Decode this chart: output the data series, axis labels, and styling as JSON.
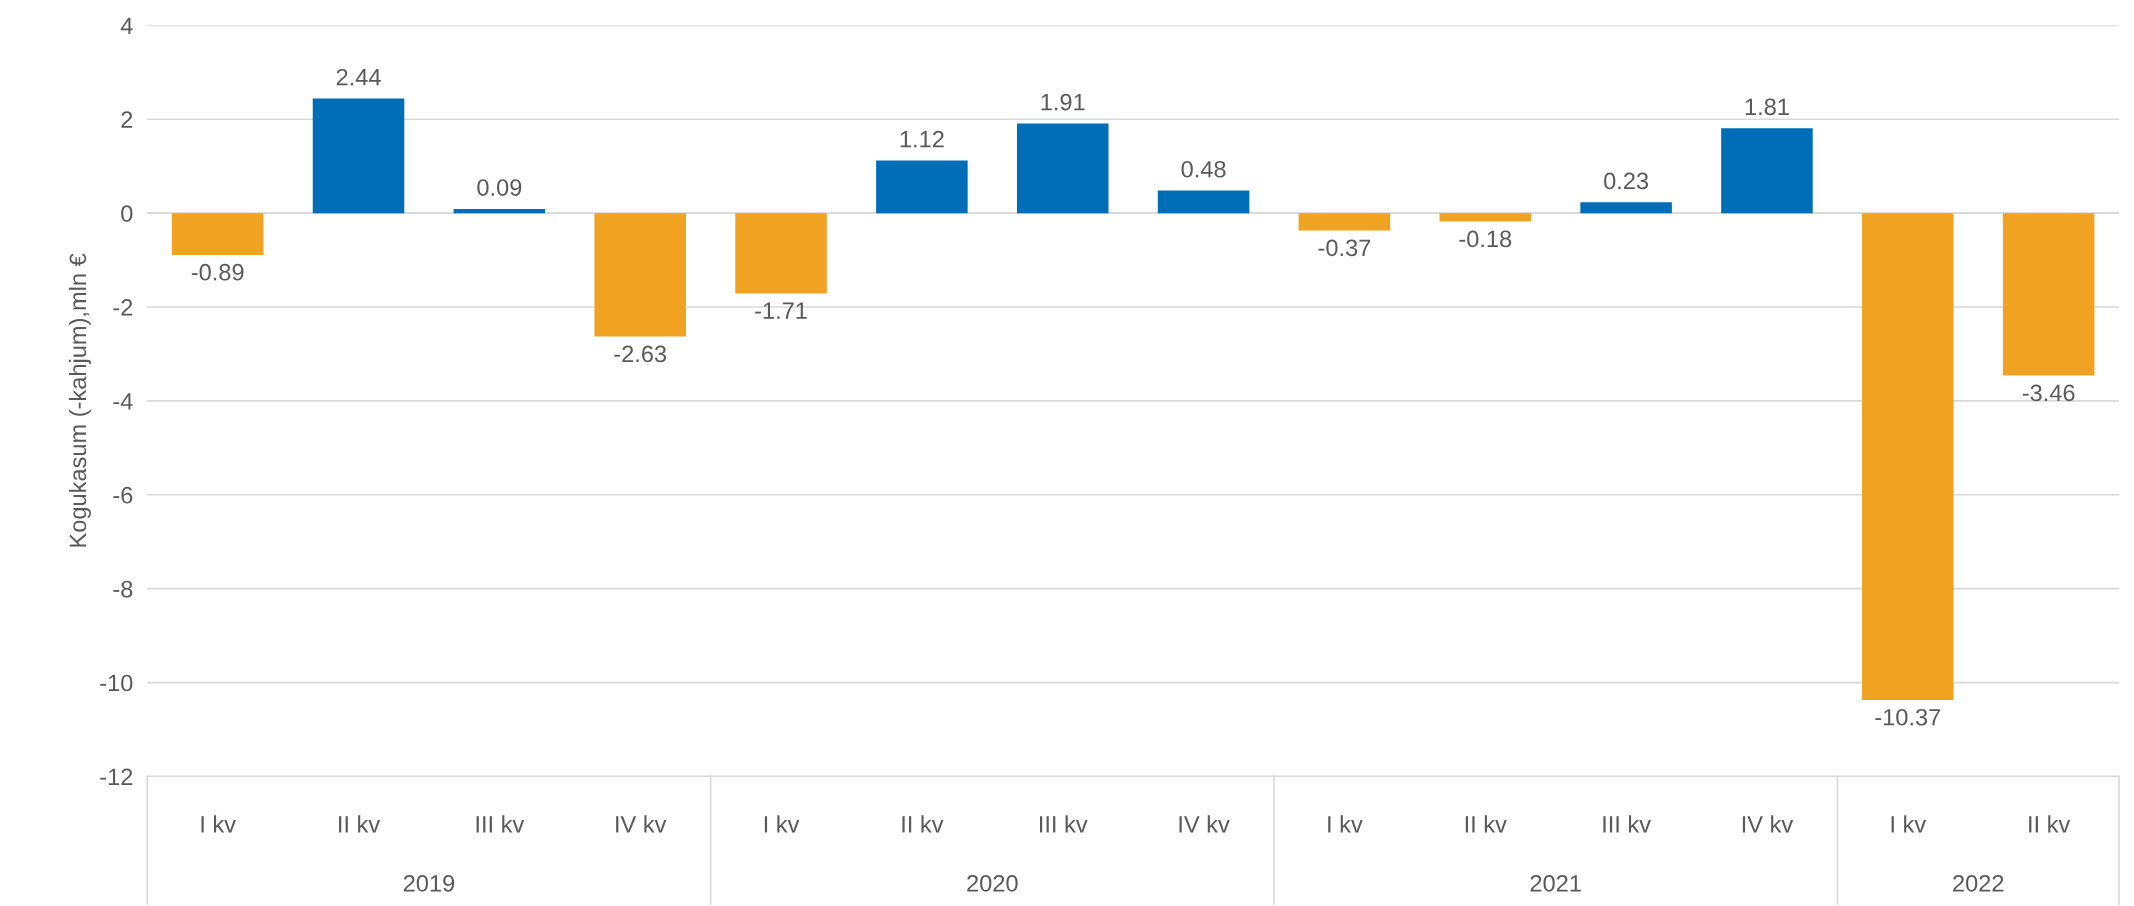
{
  "chart_data": {
    "type": "bar",
    "ylabel": "Kogukasum (-kahjum),mln €",
    "categories": [
      "I kv",
      "II kv",
      "III kv",
      "IV kv",
      "I kv",
      "II kv",
      "III kv",
      "IV kv",
      "I kv",
      "II kv",
      "III kv",
      "IV kv",
      "I kv",
      "II kv"
    ],
    "values": [
      -0.89,
      2.44,
      0.09,
      -2.63,
      -1.71,
      1.12,
      1.91,
      0.48,
      -0.37,
      -0.18,
      0.23,
      1.81,
      -10.37,
      -3.46
    ],
    "colors": [
      "#f0a323",
      "#006eb6",
      "#006eb6",
      "#f0a323",
      "#f0a323",
      "#006eb6",
      "#006eb6",
      "#006eb6",
      "#f0a323",
      "#f0a323",
      "#006eb6",
      "#006eb6",
      "#f0a323",
      "#f0a323"
    ],
    "ylim": [
      -12,
      4
    ],
    "yticks": [
      -12,
      -10,
      -8,
      -6,
      -4,
      -2,
      0,
      2,
      4
    ],
    "grid": "y",
    "data_labels": true,
    "annotations": [
      "2019",
      "2020",
      "2021",
      "2022"
    ]
  }
}
